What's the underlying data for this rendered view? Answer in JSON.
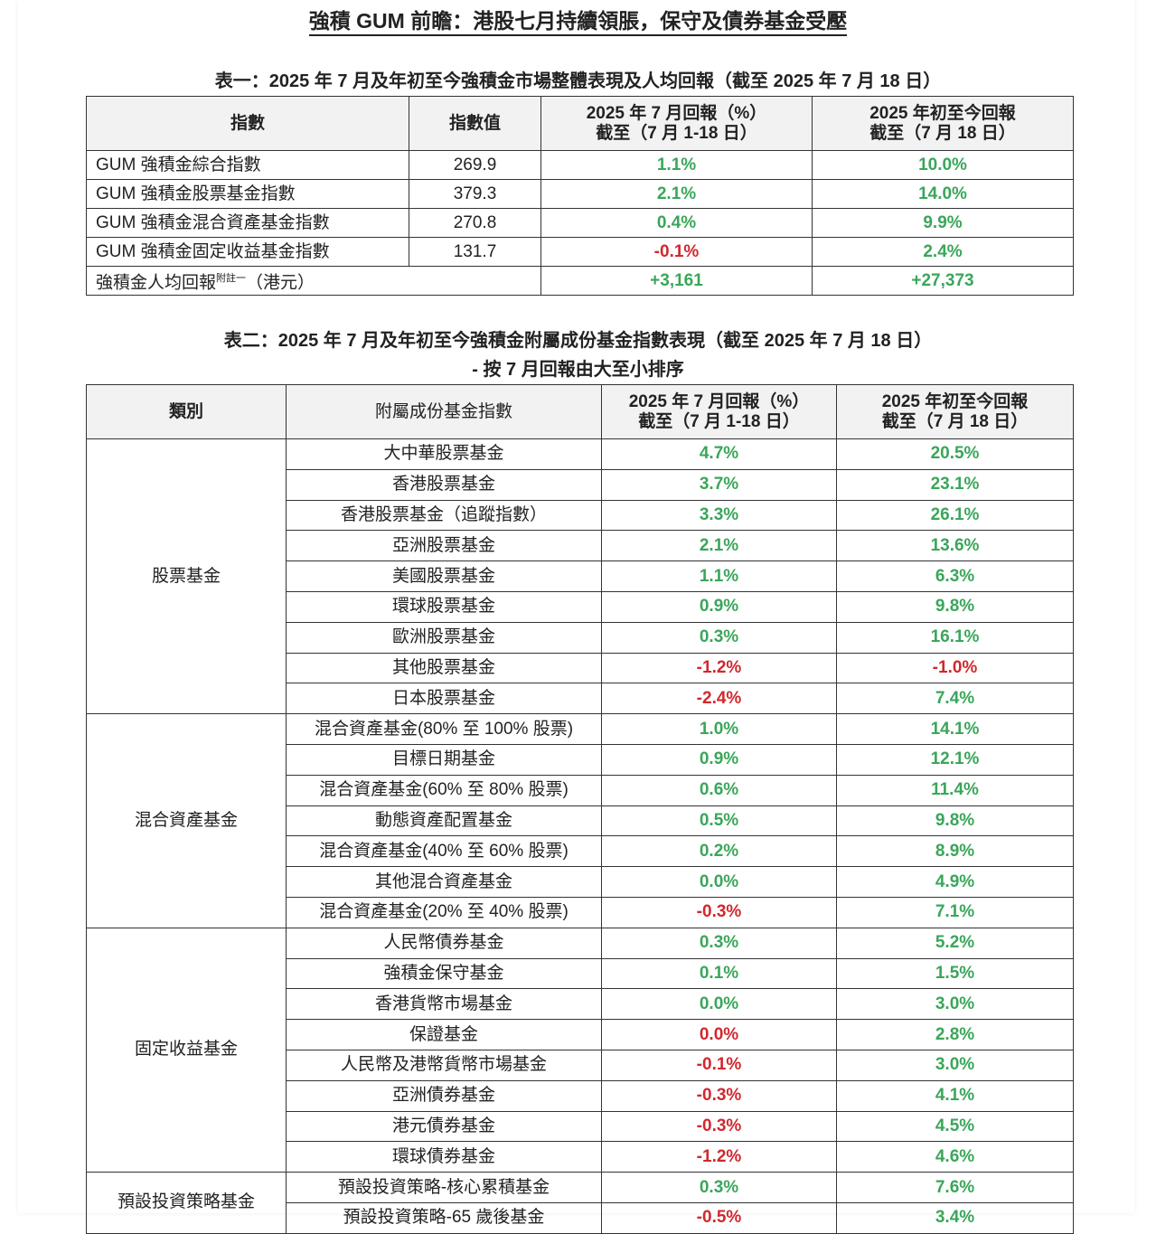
{
  "title": "強積 GUM 前瞻：港股七月持續領脹，保守及債券基金受壓",
  "colors": {
    "green": "#3aa65a",
    "red": "#d0282e"
  },
  "table1": {
    "caption": "表一：2025 年 7 月及年初至今強積金市場整體表現及人均回報（截至 2025 年 7 月 18 日）",
    "headers": [
      "指數",
      "指數值",
      "2025 年 7 月回報（%）",
      "截至（7 月 1-18 日）",
      "2025 年初至今回報",
      "截至（7 月 18 日）"
    ],
    "rows": [
      {
        "name": "GUM 強積金綜合指數",
        "value": "269.9",
        "jul": "1.1%",
        "jul_color": "green",
        "ytd": "10.0%",
        "ytd_color": "green"
      },
      {
        "name": "GUM 強積金股票基金指數",
        "value": "379.3",
        "jul": "2.1%",
        "jul_color": "green",
        "ytd": "14.0%",
        "ytd_color": "green"
      },
      {
        "name": "GUM 強積金混合資產基金指數",
        "value": "270.8",
        "jul": "0.4%",
        "jul_color": "green",
        "ytd": "9.9%",
        "ytd_color": "green"
      },
      {
        "name": "GUM 強積金固定收益基金指數",
        "value": "131.7",
        "jul": "-0.1%",
        "jul_color": "red",
        "ytd": "2.4%",
        "ytd_color": "green"
      }
    ],
    "per_capita": {
      "label": "強積金人均回報",
      "note": "附註一",
      "unit": "（港元）",
      "jul": "+3,161",
      "ytd": "+27,373"
    }
  },
  "table2": {
    "caption": "表二：2025 年 7 月及年初至今強積金附屬成份基金指數表現（截至 2025 年 7 月 18 日）",
    "subcaption": "- 按 7 月回報由大至小排序",
    "headers": [
      "類別",
      "附屬成份基金指數",
      "2025 年 7 月回報（%）",
      "截至（7 月 1-18 日）",
      "2025 年初至今回報",
      "截至（7 月 18 日）"
    ],
    "groups": [
      {
        "category": "股票基金",
        "rows": [
          {
            "name": "大中華股票基金",
            "jul": "4.7%",
            "jul_color": "green",
            "ytd": "20.5%",
            "ytd_color": "green"
          },
          {
            "name": "香港股票基金",
            "jul": "3.7%",
            "jul_color": "green",
            "ytd": "23.1%",
            "ytd_color": "green"
          },
          {
            "name": "香港股票基金（追蹤指數）",
            "jul": "3.3%",
            "jul_color": "green",
            "ytd": "26.1%",
            "ytd_color": "green"
          },
          {
            "name": "亞洲股票基金",
            "jul": "2.1%",
            "jul_color": "green",
            "ytd": "13.6%",
            "ytd_color": "green"
          },
          {
            "name": "美國股票基金",
            "jul": "1.1%",
            "jul_color": "green",
            "ytd": "6.3%",
            "ytd_color": "green"
          },
          {
            "name": "環球股票基金",
            "jul": "0.9%",
            "jul_color": "green",
            "ytd": "9.8%",
            "ytd_color": "green"
          },
          {
            "name": "歐洲股票基金",
            "jul": "0.3%",
            "jul_color": "green",
            "ytd": "16.1%",
            "ytd_color": "green"
          },
          {
            "name": "其他股票基金",
            "jul": "-1.2%",
            "jul_color": "red",
            "ytd": "-1.0%",
            "ytd_color": "red"
          },
          {
            "name": "日本股票基金",
            "jul": "-2.4%",
            "jul_color": "red",
            "ytd": "7.4%",
            "ytd_color": "green"
          }
        ]
      },
      {
        "category": "混合資產基金",
        "rows": [
          {
            "name": "混合資產基金(80% 至 100% 股票)",
            "jul": "1.0%",
            "jul_color": "green",
            "ytd": "14.1%",
            "ytd_color": "green"
          },
          {
            "name": "目標日期基金",
            "jul": "0.9%",
            "jul_color": "green",
            "ytd": "12.1%",
            "ytd_color": "green"
          },
          {
            "name": "混合資產基金(60% 至 80% 股票)",
            "jul": "0.6%",
            "jul_color": "green",
            "ytd": "11.4%",
            "ytd_color": "green"
          },
          {
            "name": "動態資產配置基金",
            "jul": "0.5%",
            "jul_color": "green",
            "ytd": "9.8%",
            "ytd_color": "green"
          },
          {
            "name": "混合資產基金(40% 至 60% 股票)",
            "jul": "0.2%",
            "jul_color": "green",
            "ytd": "8.9%",
            "ytd_color": "green"
          },
          {
            "name": "其他混合資產基金",
            "jul": "0.0%",
            "jul_color": "green",
            "ytd": "4.9%",
            "ytd_color": "green"
          },
          {
            "name": "混合資產基金(20% 至 40% 股票)",
            "jul": "-0.3%",
            "jul_color": "red",
            "ytd": "7.1%",
            "ytd_color": "green"
          }
        ]
      },
      {
        "category": "固定收益基金",
        "rows": [
          {
            "name": "人民幣債券基金",
            "jul": "0.3%",
            "jul_color": "green",
            "ytd": "5.2%",
            "ytd_color": "green"
          },
          {
            "name": "強積金保守基金",
            "jul": "0.1%",
            "jul_color": "green",
            "ytd": "1.5%",
            "ytd_color": "green"
          },
          {
            "name": "香港貨幣市場基金",
            "jul": "0.0%",
            "jul_color": "green",
            "ytd": "3.0%",
            "ytd_color": "green"
          },
          {
            "name": "保證基金",
            "jul": "0.0%",
            "jul_color": "red",
            "ytd": "2.8%",
            "ytd_color": "green"
          },
          {
            "name": "人民幣及港幣貨幣市場基金",
            "jul": "-0.1%",
            "jul_color": "red",
            "ytd": "3.0%",
            "ytd_color": "green"
          },
          {
            "name": "亞洲債券基金",
            "jul": "-0.3%",
            "jul_color": "red",
            "ytd": "4.1%",
            "ytd_color": "green"
          },
          {
            "name": "港元債券基金",
            "jul": "-0.3%",
            "jul_color": "red",
            "ytd": "4.5%",
            "ytd_color": "green"
          },
          {
            "name": "環球債券基金",
            "jul": "-1.2%",
            "jul_color": "red",
            "ytd": "4.6%",
            "ytd_color": "green"
          }
        ]
      },
      {
        "category": "預設投資策略基金",
        "rows": [
          {
            "name": "預設投資策略-核心累積基金",
            "jul": "0.3%",
            "jul_color": "green",
            "ytd": "7.6%",
            "ytd_color": "green"
          },
          {
            "name": "預設投資策略-65 歲後基金",
            "jul": "-0.5%",
            "jul_color": "red",
            "ytd": "3.4%",
            "ytd_color": "green"
          }
        ]
      }
    ]
  }
}
